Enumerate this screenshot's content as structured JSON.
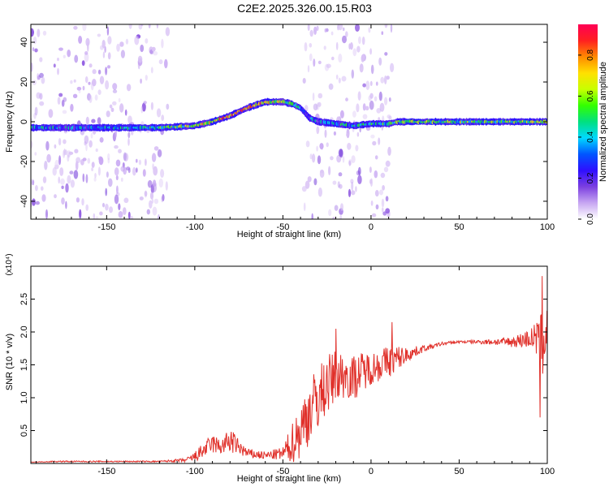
{
  "page": {
    "title": "C2E2.2025.326.00.15.R03"
  },
  "colorbar": {
    "label": "Normalized spectral amplitude",
    "ticks": [
      "0.0",
      "0.2",
      "0.4",
      "0.6",
      "0.8"
    ],
    "range": [
      0,
      0.95
    ],
    "colors": [
      "#ffffff",
      "#c7a6f2",
      "#7b3fe0",
      "#2f0fff",
      "#0055ff",
      "#00d8ff",
      "#00e080",
      "#33ff00",
      "#c8ff00",
      "#ffe000",
      "#ff8a00",
      "#ff2020",
      "#ff0055"
    ]
  },
  "chart_data": [
    {
      "type": "heatmap",
      "title": "",
      "xlabel": "Height of straight line (km)",
      "ylabel": "Frequency (Hz)",
      "xlim": [
        -193,
        100
      ],
      "ylim": [
        -49,
        49
      ],
      "x_ticks": [
        -150,
        -100,
        -50,
        0,
        50,
        100
      ],
      "y_ticks": [
        -40,
        -20,
        0,
        20,
        40
      ],
      "x_tick_labels": [
        "-150",
        "-100",
        "-50",
        "0",
        "50",
        "100"
      ],
      "y_tick_labels": [
        "-40",
        "-20",
        "0",
        "20",
        "40"
      ],
      "ridge": {
        "x": [
          -193,
          -160,
          -140,
          -120,
          -100,
          -90,
          -80,
          -70,
          -60,
          -50,
          -45,
          -40,
          -35,
          -30,
          -20,
          -10,
          0,
          10,
          15,
          30,
          50,
          70,
          90,
          100
        ],
        "y": [
          -3,
          -3,
          -3,
          -3,
          -2,
          0,
          3,
          7,
          10,
          10,
          9,
          7,
          2,
          0,
          -1,
          -2,
          -1,
          -1,
          0,
          0,
          0,
          0,
          0,
          0
        ],
        "amplitude": [
          0.35,
          0.3,
          0.35,
          0.45,
          0.6,
          0.7,
          0.75,
          0.8,
          0.7,
          0.55,
          0.5,
          0.45,
          0.3,
          0.3,
          0.35,
          0.4,
          0.4,
          0.45,
          0.55,
          0.5,
          0.5,
          0.5,
          0.55,
          0.6
        ]
      },
      "noise_regions": [
        {
          "x": [
            -193,
            -115
          ],
          "amplitude": 0.12
        },
        {
          "x": [
            -38,
            12
          ],
          "amplitude": 0.12
        }
      ]
    },
    {
      "type": "line",
      "title": "",
      "xlabel": "Height of straight line (km)",
      "ylabel": "SNR (10 * v/v)",
      "y_multiplier": "(x10⁴)",
      "xlim": [
        -193,
        100
      ],
      "ylim": [
        0,
        3.0
      ],
      "x_ticks": [
        -150,
        -100,
        -50,
        0,
        50,
        100
      ],
      "y_ticks": [
        0.5,
        1.0,
        1.5,
        2.0,
        2.5
      ],
      "x_tick_labels": [
        "-150",
        "-100",
        "-50",
        "0",
        "50",
        "100"
      ],
      "y_tick_labels": [
        "0.5",
        "1.0",
        "1.5",
        "2.0",
        "2.5"
      ],
      "color": "#e0302a",
      "series": [
        {
          "x": [
            -193,
            -180,
            -160,
            -140,
            -120,
            -105,
            -100,
            -95,
            -90,
            -85,
            -80,
            -75,
            -70,
            -60,
            -50,
            -45,
            -40,
            -35,
            -30,
            -25,
            -20,
            -15,
            -10,
            -5,
            0,
            5,
            10,
            15,
            20,
            25,
            30,
            35,
            40,
            50,
            60,
            70,
            80,
            90,
            95,
            98,
            100
          ],
          "y": [
            0.02,
            0.03,
            0.03,
            0.03,
            0.03,
            0.05,
            0.1,
            0.2,
            0.3,
            0.25,
            0.35,
            0.25,
            0.15,
            0.12,
            0.15,
            0.3,
            0.5,
            0.8,
            1.0,
            1.2,
            1.3,
            1.35,
            1.3,
            1.4,
            1.45,
            1.5,
            1.55,
            1.6,
            1.65,
            1.7,
            1.75,
            1.78,
            1.82,
            1.85,
            1.85,
            1.85,
            1.85,
            1.9,
            1.9,
            1.8,
            2.2
          ],
          "noise": [
            0.0,
            0.01,
            0.01,
            0.01,
            0.01,
            0.03,
            0.08,
            0.12,
            0.15,
            0.12,
            0.2,
            0.12,
            0.08,
            0.06,
            0.1,
            0.3,
            0.45,
            0.5,
            0.5,
            0.45,
            0.45,
            0.35,
            0.35,
            0.3,
            0.25,
            0.25,
            0.25,
            0.2,
            0.12,
            0.08,
            0.05,
            0.03,
            0.03,
            0.02,
            0.03,
            0.05,
            0.08,
            0.15,
            0.3,
            0.6,
            0.7
          ],
          "spikes": [
            {
              "x": -20,
              "y": 2.05
            },
            {
              "x": 12,
              "y": 2.15
            },
            {
              "x": 97,
              "y": 2.85
            },
            {
              "x": 96,
              "y": 0.7
            }
          ]
        }
      ]
    }
  ]
}
